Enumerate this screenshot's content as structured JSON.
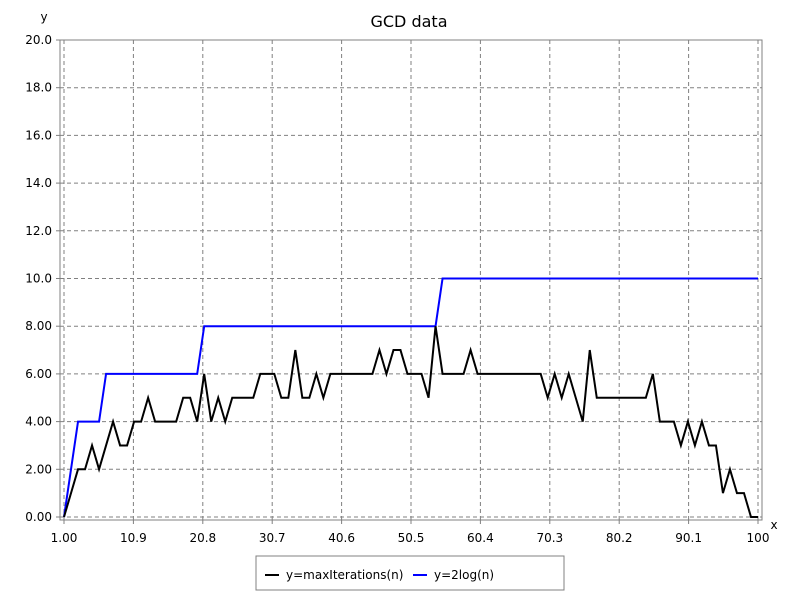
{
  "chart_data": {
    "type": "line",
    "title": "GCD data",
    "xlabel": "x",
    "ylabel": "y",
    "xlim": [
      1.0,
      100
    ],
    "ylim": [
      0.0,
      20.0
    ],
    "x_ticks": [
      "1.00",
      "10.9",
      "20.8",
      "30.7",
      "40.6",
      "50.5",
      "60.4",
      "70.3",
      "80.2",
      "90.1",
      "100"
    ],
    "y_ticks": [
      "0.00",
      "2.00",
      "4.00",
      "6.00",
      "8.00",
      "10.0",
      "12.0",
      "14.0",
      "16.0",
      "18.0",
      "20.0"
    ],
    "grid": true,
    "legend_position": "bottom-center",
    "series": [
      {
        "name": "y=maxIterations(n)",
        "color": "#000000",
        "x": [
          1,
          2,
          3,
          4,
          5,
          6,
          7,
          8,
          9,
          10,
          11,
          12,
          13,
          14,
          15,
          16,
          17,
          18,
          19,
          20,
          21,
          22,
          23,
          24,
          25,
          26,
          27,
          28,
          29,
          30,
          31,
          32,
          33,
          34,
          35,
          36,
          37,
          38,
          39,
          40,
          41,
          42,
          43,
          44,
          45,
          46,
          47,
          48,
          49,
          50,
          51,
          52,
          53,
          54,
          55,
          56,
          57,
          58,
          59,
          60,
          61,
          62,
          63,
          64,
          65,
          66,
          67,
          68,
          69,
          70,
          71,
          72,
          73,
          74,
          75,
          76,
          77,
          78,
          79,
          80,
          81,
          82,
          83,
          84,
          85,
          86,
          87,
          88,
          89,
          90,
          91,
          92,
          93,
          94,
          95,
          96,
          97,
          98,
          99,
          100
        ],
        "y": [
          0,
          1,
          2,
          2,
          3,
          2,
          3,
          4,
          3,
          3,
          4,
          4,
          5,
          4,
          4,
          4,
          4,
          5,
          5,
          4,
          6,
          4,
          5,
          4,
          5,
          5,
          5,
          5,
          6,
          6,
          6,
          5,
          5,
          7,
          5,
          5,
          6,
          5,
          6,
          6,
          6,
          6,
          6,
          6,
          6,
          7,
          6,
          7,
          7,
          6,
          6,
          6,
          5,
          8,
          6,
          6,
          6,
          6,
          7,
          6,
          6,
          6,
          6,
          6,
          6,
          6,
          6,
          6,
          6,
          5,
          6,
          5,
          6,
          5,
          4,
          7,
          5,
          5,
          5,
          5,
          5,
          5,
          5,
          5,
          6,
          4,
          4,
          4,
          3,
          4,
          3,
          4,
          3,
          3,
          1,
          2,
          1,
          1,
          0,
          0
        ]
      },
      {
        "name": "y=2log(n)",
        "color": "#0000ff",
        "x": [
          1,
          2,
          3,
          4,
          5,
          6,
          7,
          8,
          9,
          10,
          11,
          12,
          13,
          14,
          15,
          16,
          17,
          18,
          19,
          20,
          21,
          22,
          23,
          24,
          25,
          26,
          27,
          28,
          29,
          30,
          31,
          32,
          33,
          34,
          35,
          36,
          37,
          38,
          39,
          40,
          41,
          42,
          43,
          44,
          45,
          46,
          47,
          48,
          49,
          50,
          51,
          52,
          53,
          54,
          55,
          56,
          57,
          58,
          59,
          60,
          61,
          62,
          63,
          64,
          65,
          66,
          67,
          68,
          69,
          70,
          71,
          72,
          73,
          74,
          75,
          76,
          77,
          78,
          79,
          80,
          81,
          82,
          83,
          84,
          85,
          86,
          87,
          88,
          89,
          90,
          91,
          92,
          93,
          94,
          95,
          96,
          97,
          98,
          99,
          100
        ],
        "y": [
          0,
          2,
          4,
          4,
          4,
          4,
          6,
          6,
          6,
          6,
          6,
          6,
          6,
          6,
          6,
          6,
          6,
          6,
          6,
          6,
          8,
          8,
          8,
          8,
          8,
          8,
          8,
          8,
          8,
          8,
          8,
          8,
          8,
          8,
          8,
          8,
          8,
          8,
          8,
          8,
          8,
          8,
          8,
          8,
          8,
          8,
          8,
          8,
          8,
          8,
          8,
          8,
          8,
          8,
          10,
          10,
          10,
          10,
          10,
          10,
          10,
          10,
          10,
          10,
          10,
          10,
          10,
          10,
          10,
          10,
          10,
          10,
          10,
          10,
          10,
          10,
          10,
          10,
          10,
          10,
          10,
          10,
          10,
          10,
          10,
          10,
          10,
          10,
          10,
          10,
          10,
          10,
          10,
          10,
          10,
          10,
          10,
          10,
          10,
          10
        ]
      }
    ]
  }
}
